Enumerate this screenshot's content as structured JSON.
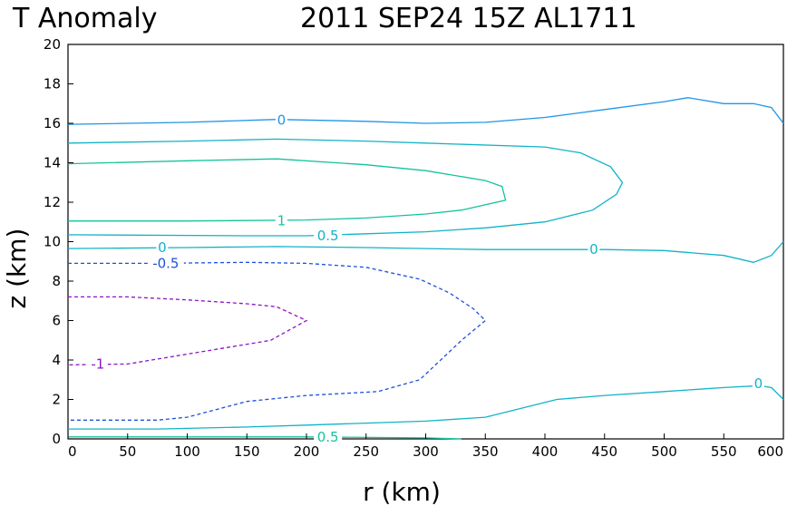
{
  "chart_data": {
    "type": "contour",
    "title_left": "T Anomaly",
    "title_right": "2011 SEP24 15Z   AL1711",
    "xlabel": "r (km)",
    "ylabel": "z (km)",
    "xlim": [
      0,
      600
    ],
    "ylim": [
      0,
      20
    ],
    "xticks": [
      "0",
      "50",
      "100",
      "150",
      "200",
      "250",
      "300",
      "350",
      "400",
      "450",
      "500",
      "550",
      "600"
    ],
    "yticks": [
      "0",
      "2",
      "4",
      "6",
      "8",
      "10",
      "12",
      "14",
      "16",
      "18",
      "20"
    ],
    "grid": false,
    "contours": [
      {
        "level": "0",
        "color": "#1e96e6",
        "dashed": false,
        "points": [
          [
            0,
            15.95
          ],
          [
            100,
            16.05
          ],
          [
            175,
            16.2
          ],
          [
            250,
            16.1
          ],
          [
            300,
            16.0
          ],
          [
            350,
            16.05
          ],
          [
            400,
            16.3
          ],
          [
            450,
            16.7
          ],
          [
            500,
            17.1
          ],
          [
            520,
            17.3
          ],
          [
            550,
            17.0
          ],
          [
            575,
            17.0
          ],
          [
            590,
            16.8
          ],
          [
            600,
            16.0
          ]
        ],
        "label_at": [
          179,
          16.15
        ]
      },
      {
        "level": "0.5",
        "color": "#12b3c8",
        "dashed": false,
        "points": [
          [
            0,
            15.0
          ],
          [
            100,
            15.1
          ],
          [
            175,
            15.2
          ],
          [
            250,
            15.1
          ],
          [
            300,
            15.0
          ],
          [
            400,
            14.8
          ],
          [
            430,
            14.5
          ],
          [
            455,
            13.8
          ],
          [
            465,
            13.0
          ],
          [
            460,
            12.4
          ],
          [
            440,
            11.6
          ],
          [
            400,
            11.0
          ],
          [
            350,
            10.7
          ],
          [
            300,
            10.5
          ],
          [
            250,
            10.4
          ],
          [
            200,
            10.3
          ],
          [
            150,
            10.3
          ],
          [
            0,
            10.35
          ]
        ],
        "label_at": [
          218,
          10.3
        ]
      },
      {
        "level": "1",
        "color": "#14c39c",
        "dashed": false,
        "points": [
          [
            0,
            13.95
          ],
          [
            100,
            14.1
          ],
          [
            175,
            14.2
          ],
          [
            250,
            13.9
          ],
          [
            300,
            13.6
          ],
          [
            350,
            13.1
          ],
          [
            364,
            12.8
          ],
          [
            367,
            12.1
          ],
          [
            330,
            11.6
          ],
          [
            300,
            11.4
          ],
          [
            250,
            11.2
          ],
          [
            200,
            11.1
          ],
          [
            100,
            11.05
          ],
          [
            0,
            11.05
          ]
        ],
        "label_at": [
          179,
          11.05
        ]
      },
      {
        "level": "0",
        "color": "#12b3c8",
        "dashed": false,
        "points": [
          [
            0,
            9.65
          ],
          [
            100,
            9.7
          ],
          [
            175,
            9.75
          ],
          [
            250,
            9.7
          ],
          [
            300,
            9.65
          ],
          [
            350,
            9.6
          ],
          [
            400,
            9.6
          ],
          [
            450,
            9.6
          ],
          [
            500,
            9.55
          ],
          [
            550,
            9.3
          ],
          [
            575,
            8.95
          ],
          [
            590,
            9.3
          ],
          [
            600,
            10.0
          ]
        ],
        "label_at": [
          79,
          9.7
        ]
      },
      {
        "level": "0",
        "color": "#12b3c8",
        "dashed": false,
        "label_at": [
          441,
          9.6
        ]
      },
      {
        "level": "-0.5",
        "color": "#1e50dc",
        "dashed": true,
        "points": [
          [
            0,
            8.9
          ],
          [
            75,
            8.9
          ],
          [
            150,
            8.95
          ],
          [
            200,
            8.9
          ],
          [
            250,
            8.7
          ],
          [
            295,
            8.1
          ],
          [
            320,
            7.4
          ],
          [
            340,
            6.6
          ],
          [
            350,
            6.0
          ],
          [
            330,
            5.0
          ],
          [
            295,
            3.0
          ],
          [
            260,
            2.4
          ],
          [
            200,
            2.2
          ],
          [
            150,
            1.9
          ],
          [
            100,
            1.1
          ],
          [
            75,
            0.95
          ],
          [
            0,
            0.95
          ]
        ],
        "label_at": [
          82,
          8.9
        ]
      },
      {
        "level": "-1",
        "color": "#8c14c8",
        "dashed": true,
        "points": [
          [
            0,
            7.2
          ],
          [
            50,
            7.2
          ],
          [
            100,
            7.05
          ],
          [
            150,
            6.85
          ],
          [
            175,
            6.7
          ],
          [
            200,
            6.0
          ],
          [
            170,
            5.0
          ],
          [
            100,
            4.3
          ],
          [
            50,
            3.8
          ],
          [
            0,
            3.75
          ]
        ],
        "label_at": [
          25,
          3.8
        ]
      },
      {
        "level": "0",
        "color": "#12b3c8",
        "dashed": false,
        "points": [
          [
            0,
            0.5
          ],
          [
            75,
            0.5
          ],
          [
            150,
            0.6
          ],
          [
            200,
            0.7
          ],
          [
            250,
            0.8
          ],
          [
            300,
            0.9
          ],
          [
            350,
            1.1
          ],
          [
            410,
            2.0
          ],
          [
            450,
            2.2
          ],
          [
            500,
            2.4
          ],
          [
            550,
            2.6
          ],
          [
            580,
            2.7
          ],
          [
            590,
            2.6
          ],
          [
            600,
            2.0
          ]
        ],
        "label_at": [
          579,
          2.8
        ]
      },
      {
        "level": "0.5",
        "color": "#14c39c",
        "dashed": false,
        "points": [
          [
            0,
            0.1
          ],
          [
            100,
            0.1
          ],
          [
            200,
            0.1
          ],
          [
            300,
            0.05
          ],
          [
            330,
            0.0
          ]
        ],
        "label_at": [
          218,
          0.1
        ]
      }
    ]
  }
}
